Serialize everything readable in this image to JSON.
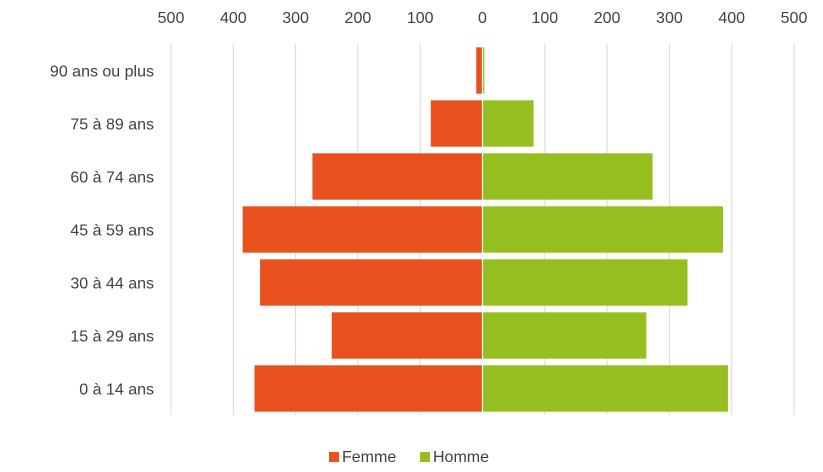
{
  "chart_data": {
    "type": "bar",
    "orientation": "horizontal",
    "layout": "population-pyramid",
    "categories": [
      "90 ans ou plus",
      "75 à 89 ans",
      "60 à 74 ans",
      "45 à 59 ans",
      "30 à 44 ans",
      "15 à 29 ans",
      "0 à 14 ans"
    ],
    "series": [
      {
        "name": "Femme",
        "color": "#E8501E",
        "side": "left",
        "values": [
          10,
          83,
          273,
          385,
          357,
          242,
          366
        ]
      },
      {
        "name": "Homme",
        "color": "#94BF1E",
        "side": "right",
        "values": [
          3,
          82,
          273,
          386,
          329,
          263,
          394
        ]
      }
    ],
    "xlim": [
      -500,
      500
    ],
    "tick_values": [
      -500,
      -400,
      -300,
      -200,
      -100,
      0,
      100,
      200,
      300,
      400,
      500
    ],
    "tick_labels": [
      "500",
      "400",
      "300",
      "200",
      "100",
      "0",
      "100",
      "200",
      "300",
      "400",
      "500"
    ],
    "grid": true,
    "legend": "bottom",
    "colors": {
      "grid": "#D9D9D9",
      "text": "#404040",
      "zero_line": "#D9D9D9"
    }
  }
}
